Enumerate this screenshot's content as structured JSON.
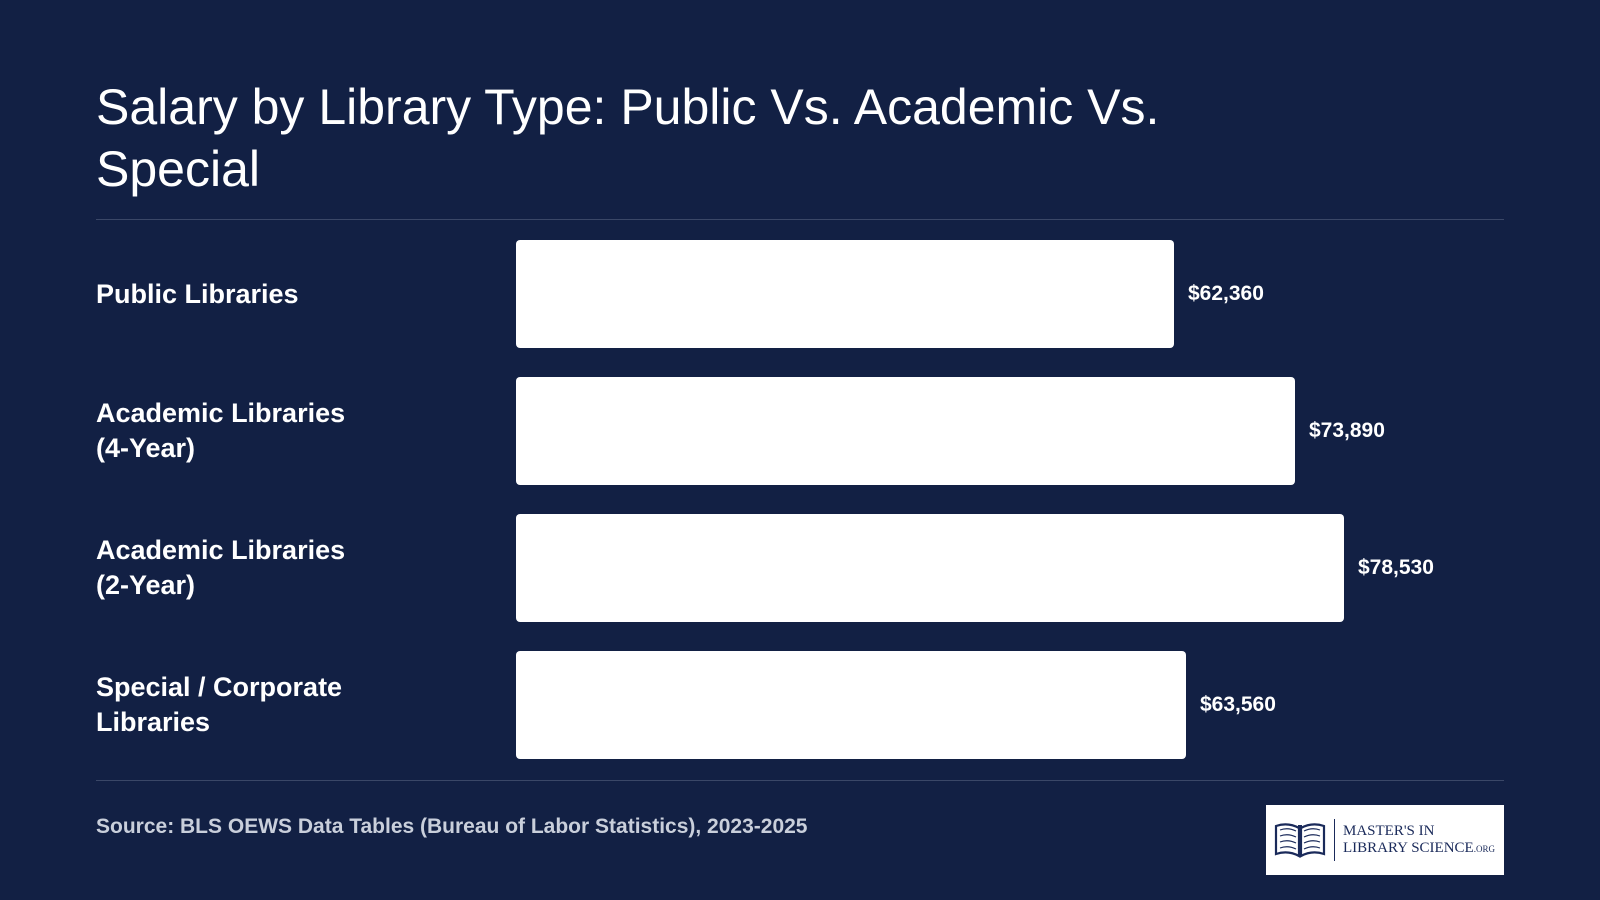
{
  "page": {
    "title": "Salary by Library Type: Public Vs. Academic Vs. Special",
    "source": "Source: BLS OEWS Data Tables (Bureau of Labor Statistics), 2023-2025",
    "logo": {
      "line1": "MASTER'S IN",
      "line2": "LIBRARY SCIENCE",
      "suffix": ".ORG",
      "icon": "open-book-icon"
    }
  },
  "colors": {
    "background": "#122044",
    "bar": "#ffffff",
    "text": "#ffffff",
    "divider": "#3a4767",
    "source_text": "#c9cfdb",
    "logo_text": "#1a2a5a"
  },
  "chart_data": {
    "type": "bar",
    "orientation": "horizontal",
    "title": "Salary by Library Type: Public Vs. Academic Vs. Special",
    "xlabel": "",
    "ylabel": "",
    "grid": false,
    "legend": "none",
    "xlim": [
      0,
      78530
    ],
    "categories": [
      "Public Libraries",
      "Academic Libraries\n(4-Year)",
      "Academic Libraries\n(2-Year)",
      "Special / Corporate\nLibraries"
    ],
    "values": [
      62360,
      73890,
      78530,
      63560
    ],
    "value_labels": [
      "$62,360",
      "$73,890",
      "$78,530",
      "$63,560"
    ]
  }
}
